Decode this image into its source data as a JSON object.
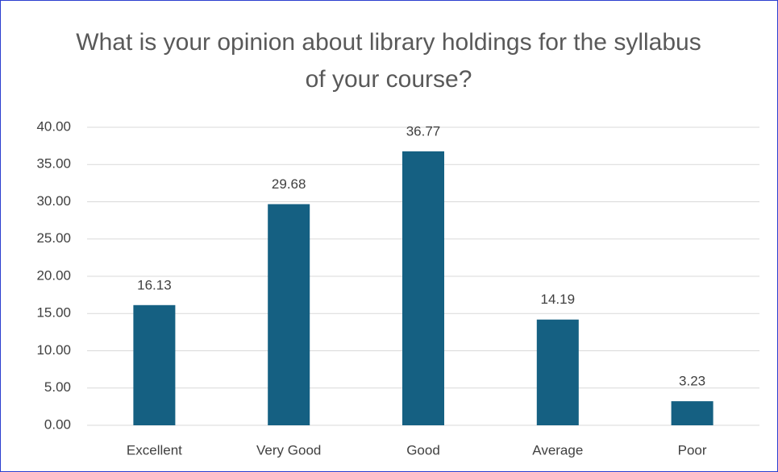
{
  "chart_data": {
    "type": "bar",
    "title": "What is your opinion about library holdings for the syllabus of your course?",
    "categories": [
      "Excellent",
      "Very Good",
      "Good",
      "Average",
      "Poor"
    ],
    "values": [
      16.13,
      29.68,
      36.77,
      14.19,
      3.23
    ],
    "color": "#156082",
    "ylim": [
      0,
      40
    ],
    "yticks": [
      {
        "value": 0,
        "label": "0.00"
      },
      {
        "value": 5,
        "label": "5.00"
      },
      {
        "value": 10,
        "label": "10.00"
      },
      {
        "value": 15,
        "label": "15.00"
      },
      {
        "value": 20,
        "label": "20.00"
      },
      {
        "value": 25,
        "label": "25.00"
      },
      {
        "value": 30,
        "label": "30.00"
      },
      {
        "value": 35,
        "label": "35.00"
      },
      {
        "value": 40,
        "label": "40.00"
      }
    ],
    "grid": true
  }
}
